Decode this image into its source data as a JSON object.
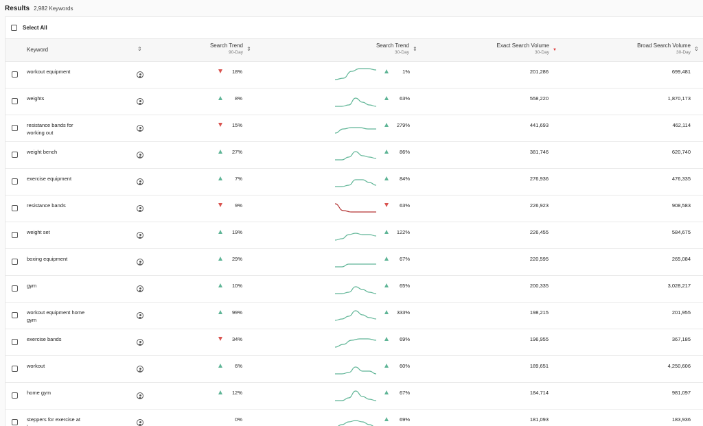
{
  "header": {
    "title": "Results",
    "count": "2,982 Keywords"
  },
  "select_all": "Select All",
  "columns": {
    "keyword": "Keyword",
    "trend90": {
      "label": "Search Trend",
      "sub": "90-Day"
    },
    "trend30": {
      "label": "Search Trend",
      "sub": "30-Day"
    },
    "exact": {
      "label": "Exact Search Volume",
      "sub": "30-Day"
    },
    "broad": {
      "label": "Broad Search Volume",
      "sub": "30-Day"
    }
  },
  "colors": {
    "up": "#5fb596",
    "down": "#d9534f",
    "spark_up": "#5fb596",
    "spark_down": "#b33333"
  },
  "icons": {
    "sort": "sort-icon",
    "user": "user-circle-icon",
    "sort_active": "sort-desc-icon"
  },
  "rows": [
    {
      "keyword": "workout equipment",
      "trend90": {
        "dir": "down",
        "value": "18%"
      },
      "trend30": {
        "dir": "up",
        "value": "1%"
      },
      "exact": "201,286",
      "broad": "699,481",
      "spark": [
        0,
        1,
        6,
        8,
        8,
        7
      ]
    },
    {
      "keyword": "weights",
      "trend90": {
        "dir": "up",
        "value": "8%"
      },
      "trend30": {
        "dir": "up",
        "value": "63%"
      },
      "exact": "558,220",
      "broad": "1,870,173",
      "spark": [
        0,
        0,
        1,
        6,
        3,
        1,
        0
      ]
    },
    {
      "keyword": "resistance bands for working out",
      "trend90": {
        "dir": "down",
        "value": "15%"
      },
      "trend30": {
        "dir": "up",
        "value": "279%"
      },
      "exact": "441,693",
      "broad": "462,114",
      "spark": [
        0,
        3,
        4,
        4,
        3,
        3
      ]
    },
    {
      "keyword": "weight bench",
      "trend90": {
        "dir": "up",
        "value": "27%"
      },
      "trend30": {
        "dir": "up",
        "value": "86%"
      },
      "exact": "381,746",
      "broad": "620,740",
      "spark": [
        0,
        0,
        2,
        6,
        3,
        2,
        1
      ]
    },
    {
      "keyword": "exercise equipment",
      "trend90": {
        "dir": "up",
        "value": "7%"
      },
      "trend30": {
        "dir": "up",
        "value": "84%"
      },
      "exact": "276,936",
      "broad": "476,335",
      "spark": [
        0,
        0,
        1,
        5,
        5,
        3,
        1
      ]
    },
    {
      "keyword": "resistance bands",
      "trend90": {
        "dir": "down",
        "value": "9%"
      },
      "trend30": {
        "dir": "down",
        "value": "63%"
      },
      "exact": "226,923",
      "broad": "908,583",
      "spark": [
        7,
        2,
        1,
        1,
        1,
        1
      ]
    },
    {
      "keyword": "weight set",
      "trend90": {
        "dir": "up",
        "value": "19%"
      },
      "trend30": {
        "dir": "up",
        "value": "122%"
      },
      "exact": "226,455",
      "broad": "584,675",
      "spark": [
        0,
        1,
        4,
        5,
        4,
        4,
        3
      ]
    },
    {
      "keyword": "boxing equipment",
      "trend90": {
        "dir": "up",
        "value": "29%"
      },
      "trend30": {
        "dir": "up",
        "value": "67%"
      },
      "exact": "220,595",
      "broad": "265,084",
      "spark": [
        0,
        0,
        2,
        2,
        2,
        2,
        2
      ]
    },
    {
      "keyword": "gym",
      "trend90": {
        "dir": "up",
        "value": "10%"
      },
      "trend30": {
        "dir": "up",
        "value": "65%"
      },
      "exact": "200,335",
      "broad": "3,028,217",
      "spark": [
        0,
        0,
        1,
        5,
        3,
        1,
        0
      ]
    },
    {
      "keyword": "workout equipment home gym",
      "trend90": {
        "dir": "up",
        "value": "99%"
      },
      "trend30": {
        "dir": "up",
        "value": "333%"
      },
      "exact": "198,215",
      "broad": "201,955",
      "spark": [
        0,
        1,
        3,
        7,
        4,
        2,
        1
      ]
    },
    {
      "keyword": "exercise bands",
      "trend90": {
        "dir": "down",
        "value": "34%"
      },
      "trend30": {
        "dir": "up",
        "value": "69%"
      },
      "exact": "196,955",
      "broad": "367,185",
      "spark": [
        0,
        2,
        5,
        6,
        6,
        5
      ]
    },
    {
      "keyword": "workout",
      "trend90": {
        "dir": "up",
        "value": "6%"
      },
      "trend30": {
        "dir": "up",
        "value": "60%"
      },
      "exact": "189,651",
      "broad": "4,250,606",
      "spark": [
        0,
        0,
        1,
        5,
        2,
        2,
        0
      ]
    },
    {
      "keyword": "home gym",
      "trend90": {
        "dir": "up",
        "value": "12%"
      },
      "trend30": {
        "dir": "up",
        "value": "67%"
      },
      "exact": "184,714",
      "broad": "981,097",
      "spark": [
        0,
        0,
        2,
        7,
        3,
        1,
        0
      ]
    },
    {
      "keyword": "steppers for exercise at home",
      "trend90": {
        "dir": "none",
        "value": "0%"
      },
      "trend30": {
        "dir": "up",
        "value": "69%"
      },
      "exact": "181,093",
      "broad": "183,936",
      "spark": [
        0,
        2,
        4,
        5,
        4,
        2,
        0
      ]
    }
  ]
}
